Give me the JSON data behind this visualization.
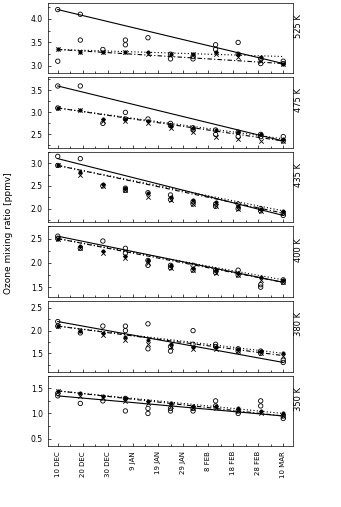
{
  "panels": [
    {
      "label": "525 K",
      "ylim": [
        2.85,
        4.35
      ],
      "yticks": [
        3.0,
        3.5,
        4.0
      ],
      "circle_data": [
        [
          0,
          4.2
        ],
        [
          0,
          3.1
        ],
        [
          1,
          4.1
        ],
        [
          1,
          3.55
        ],
        [
          2,
          3.35
        ],
        [
          3,
          3.55
        ],
        [
          3,
          3.45
        ],
        [
          4,
          3.6
        ],
        [
          5,
          3.15
        ],
        [
          5,
          3.25
        ],
        [
          6,
          3.2
        ],
        [
          6,
          3.15
        ],
        [
          7,
          3.45
        ],
        [
          7,
          3.35
        ],
        [
          8,
          3.5
        ],
        [
          8,
          3.25
        ],
        [
          9,
          3.05
        ],
        [
          9,
          3.15
        ],
        [
          10,
          3.1
        ],
        [
          10,
          3.05
        ]
      ],
      "cross_data": [
        [
          0,
          3.35
        ],
        [
          1,
          3.3
        ],
        [
          2,
          3.3
        ],
        [
          3,
          3.3
        ],
        [
          4,
          3.25
        ],
        [
          5,
          3.25
        ],
        [
          6,
          3.25
        ],
        [
          7,
          3.25
        ],
        [
          8,
          3.2
        ],
        [
          9,
          3.1
        ],
        [
          10,
          3.05
        ]
      ],
      "dot_data": [
        [
          0,
          3.35
        ],
        [
          1,
          3.3
        ],
        [
          2,
          3.3
        ],
        [
          3,
          3.3
        ],
        [
          4,
          3.3
        ],
        [
          5,
          3.25
        ],
        [
          6,
          3.25
        ],
        [
          7,
          3.3
        ],
        [
          8,
          3.25
        ],
        [
          9,
          3.2
        ],
        [
          10,
          3.05
        ]
      ],
      "line_solid": [
        4.2,
        3.05
      ],
      "line_dashed": [
        3.35,
        3.05
      ],
      "line_dotted": [
        3.35,
        3.2
      ]
    },
    {
      "label": "475 K",
      "ylim": [
        2.2,
        3.8
      ],
      "yticks": [
        2.5,
        3.0,
        3.5
      ],
      "circle_data": [
        [
          0,
          3.6
        ],
        [
          0,
          3.1
        ],
        [
          1,
          3.6
        ],
        [
          2,
          2.75
        ],
        [
          3,
          2.85
        ],
        [
          3,
          3.0
        ],
        [
          4,
          2.85
        ],
        [
          5,
          2.75
        ],
        [
          5,
          2.7
        ],
        [
          6,
          2.65
        ],
        [
          6,
          2.6
        ],
        [
          7,
          2.6
        ],
        [
          7,
          2.5
        ],
        [
          8,
          2.55
        ],
        [
          8,
          2.45
        ],
        [
          9,
          2.5
        ],
        [
          9,
          2.45
        ],
        [
          10,
          2.45
        ],
        [
          10,
          2.35
        ]
      ],
      "cross_data": [
        [
          0,
          3.1
        ],
        [
          1,
          3.05
        ],
        [
          2,
          2.8
        ],
        [
          3,
          2.8
        ],
        [
          4,
          2.75
        ],
        [
          5,
          2.65
        ],
        [
          6,
          2.55
        ],
        [
          7,
          2.45
        ],
        [
          8,
          2.4
        ],
        [
          9,
          2.35
        ],
        [
          10,
          2.35
        ]
      ],
      "dot_data": [
        [
          0,
          3.1
        ],
        [
          1,
          3.05
        ],
        [
          2,
          2.85
        ],
        [
          3,
          2.85
        ],
        [
          4,
          2.8
        ],
        [
          5,
          2.7
        ],
        [
          6,
          2.65
        ],
        [
          7,
          2.6
        ],
        [
          8,
          2.55
        ],
        [
          9,
          2.5
        ],
        [
          10,
          2.4
        ]
      ],
      "line_solid": [
        3.6,
        2.35
      ],
      "line_dashed": [
        3.1,
        2.35
      ],
      "line_dotted": [
        3.1,
        2.4
      ]
    },
    {
      "label": "435 K",
      "ylim": [
        1.7,
        3.25
      ],
      "yticks": [
        2.0,
        2.5,
        3.0
      ],
      "circle_data": [
        [
          0,
          3.15
        ],
        [
          0,
          2.95
        ],
        [
          1,
          3.1
        ],
        [
          2,
          2.5
        ],
        [
          3,
          2.4
        ],
        [
          3,
          2.45
        ],
        [
          4,
          2.35
        ],
        [
          5,
          2.2
        ],
        [
          5,
          2.3
        ],
        [
          6,
          2.15
        ],
        [
          6,
          2.1
        ],
        [
          7,
          2.1
        ],
        [
          7,
          2.05
        ],
        [
          8,
          2.1
        ],
        [
          8,
          2.0
        ],
        [
          9,
          2.0
        ],
        [
          9,
          1.95
        ],
        [
          10,
          1.9
        ],
        [
          10,
          1.85
        ]
      ],
      "cross_data": [
        [
          0,
          2.95
        ],
        [
          1,
          2.75
        ],
        [
          2,
          2.5
        ],
        [
          3,
          2.4
        ],
        [
          4,
          2.25
        ],
        [
          5,
          2.2
        ],
        [
          6,
          2.1
        ],
        [
          7,
          2.05
        ],
        [
          8,
          2.0
        ],
        [
          9,
          1.95
        ],
        [
          10,
          1.9
        ]
      ],
      "dot_data": [
        [
          0,
          2.95
        ],
        [
          1,
          2.8
        ],
        [
          2,
          2.55
        ],
        [
          3,
          2.45
        ],
        [
          4,
          2.35
        ],
        [
          5,
          2.25
        ],
        [
          6,
          2.2
        ],
        [
          7,
          2.15
        ],
        [
          8,
          2.05
        ],
        [
          9,
          2.0
        ],
        [
          10,
          1.95
        ]
      ],
      "line_solid": [
        3.1,
        1.85
      ],
      "line_dashed": [
        2.95,
        1.9
      ],
      "line_dotted": [
        2.95,
        1.95
      ]
    },
    {
      "label": "400 K",
      "ylim": [
        1.3,
        2.75
      ],
      "yticks": [
        1.5,
        2.0,
        2.5
      ],
      "circle_data": [
        [
          0,
          2.55
        ],
        [
          0,
          2.5
        ],
        [
          1,
          2.3
        ],
        [
          2,
          2.45
        ],
        [
          3,
          2.3
        ],
        [
          3,
          2.2
        ],
        [
          4,
          2.05
        ],
        [
          4,
          1.95
        ],
        [
          5,
          1.95
        ],
        [
          5,
          1.9
        ],
        [
          6,
          1.95
        ],
        [
          6,
          1.85
        ],
        [
          7,
          1.85
        ],
        [
          7,
          1.8
        ],
        [
          8,
          1.85
        ],
        [
          8,
          1.75
        ],
        [
          9,
          1.55
        ],
        [
          9,
          1.5
        ],
        [
          10,
          1.65
        ],
        [
          10,
          1.6
        ]
      ],
      "cross_data": [
        [
          0,
          2.5
        ],
        [
          1,
          2.3
        ],
        [
          2,
          2.2
        ],
        [
          3,
          2.1
        ],
        [
          4,
          2.0
        ],
        [
          5,
          1.9
        ],
        [
          6,
          1.85
        ],
        [
          7,
          1.8
        ],
        [
          8,
          1.75
        ],
        [
          9,
          1.65
        ],
        [
          10,
          1.6
        ]
      ],
      "dot_data": [
        [
          0,
          2.5
        ],
        [
          1,
          2.35
        ],
        [
          2,
          2.25
        ],
        [
          3,
          2.15
        ],
        [
          4,
          2.05
        ],
        [
          5,
          1.95
        ],
        [
          6,
          1.9
        ],
        [
          7,
          1.85
        ],
        [
          8,
          1.8
        ],
        [
          9,
          1.7
        ],
        [
          10,
          1.65
        ]
      ],
      "line_solid": [
        2.55,
        1.6
      ],
      "line_dashed": [
        2.5,
        1.6
      ],
      "line_dotted": [
        2.5,
        1.65
      ]
    },
    {
      "label": "380 K",
      "ylim": [
        1.1,
        2.65
      ],
      "yticks": [
        1.5,
        2.0,
        2.5
      ],
      "circle_data": [
        [
          0,
          2.2
        ],
        [
          0,
          2.1
        ],
        [
          1,
          1.95
        ],
        [
          2,
          2.1
        ],
        [
          3,
          2.1
        ],
        [
          3,
          2.0
        ],
        [
          4,
          2.15
        ],
        [
          4,
          1.6
        ],
        [
          5,
          1.65
        ],
        [
          5,
          1.55
        ],
        [
          6,
          2.0
        ],
        [
          6,
          1.7
        ],
        [
          7,
          1.7
        ],
        [
          7,
          1.65
        ],
        [
          8,
          1.6
        ],
        [
          8,
          1.55
        ],
        [
          9,
          1.55
        ],
        [
          9,
          1.5
        ],
        [
          10,
          1.35
        ],
        [
          10,
          1.3
        ]
      ],
      "cross_data": [
        [
          0,
          2.1
        ],
        [
          1,
          2.0
        ],
        [
          2,
          1.9
        ],
        [
          3,
          1.8
        ],
        [
          4,
          1.7
        ],
        [
          5,
          1.65
        ],
        [
          6,
          1.6
        ],
        [
          7,
          1.6
        ],
        [
          8,
          1.55
        ],
        [
          9,
          1.5
        ],
        [
          10,
          1.45
        ]
      ],
      "dot_data": [
        [
          0,
          2.1
        ],
        [
          1,
          2.0
        ],
        [
          2,
          1.95
        ],
        [
          3,
          1.85
        ],
        [
          4,
          1.8
        ],
        [
          5,
          1.7
        ],
        [
          6,
          1.65
        ],
        [
          7,
          1.65
        ],
        [
          8,
          1.6
        ],
        [
          9,
          1.55
        ],
        [
          10,
          1.5
        ]
      ],
      "line_solid": [
        2.2,
        1.3
      ],
      "line_dashed": [
        2.1,
        1.45
      ],
      "line_dotted": [
        2.1,
        1.5
      ]
    },
    {
      "label": "350 K",
      "ylim": [
        0.35,
        1.75
      ],
      "yticks": [
        0.5,
        1.0,
        1.5
      ],
      "circle_data": [
        [
          0,
          1.4
        ],
        [
          0,
          1.35
        ],
        [
          1,
          1.2
        ],
        [
          2,
          1.25
        ],
        [
          3,
          1.05
        ],
        [
          3,
          1.3
        ],
        [
          4,
          1.0
        ],
        [
          4,
          1.1
        ],
        [
          5,
          1.1
        ],
        [
          5,
          1.05
        ],
        [
          6,
          1.1
        ],
        [
          6,
          1.05
        ],
        [
          7,
          1.25
        ],
        [
          7,
          1.15
        ],
        [
          8,
          1.05
        ],
        [
          8,
          1.0
        ],
        [
          9,
          1.25
        ],
        [
          9,
          1.15
        ],
        [
          10,
          0.95
        ],
        [
          10,
          0.9
        ]
      ],
      "cross_data": [
        [
          0,
          1.45
        ],
        [
          1,
          1.35
        ],
        [
          2,
          1.3
        ],
        [
          3,
          1.25
        ],
        [
          4,
          1.2
        ],
        [
          5,
          1.15
        ],
        [
          6,
          1.1
        ],
        [
          7,
          1.1
        ],
        [
          8,
          1.05
        ],
        [
          9,
          1.0
        ],
        [
          10,
          0.95
        ]
      ],
      "dot_data": [
        [
          0,
          1.45
        ],
        [
          1,
          1.4
        ],
        [
          2,
          1.35
        ],
        [
          3,
          1.3
        ],
        [
          4,
          1.25
        ],
        [
          5,
          1.2
        ],
        [
          6,
          1.15
        ],
        [
          7,
          1.15
        ],
        [
          8,
          1.1
        ],
        [
          9,
          1.05
        ],
        [
          10,
          1.0
        ]
      ],
      "line_solid": [
        1.35,
        0.95
      ],
      "line_dashed": [
        1.45,
        0.95
      ],
      "line_dotted": [
        1.45,
        1.0
      ]
    }
  ],
  "xticklabels": [
    "10 DEC",
    "20 DEC",
    "30 DEC",
    "9 JAN",
    "19 JAN",
    "29 JAN",
    "8 FEB",
    "18 FEB",
    "28 FEB",
    "10 MAR"
  ],
  "xtick_positions": [
    0,
    1,
    2,
    3,
    4,
    5,
    6,
    7,
    8,
    9,
    10
  ],
  "xtick_show": [
    0,
    1,
    2,
    3,
    4,
    5,
    6,
    7,
    8,
    10
  ],
  "ylabel": "Ozone mixing ratio [ppmv]",
  "background_color": "#ffffff"
}
